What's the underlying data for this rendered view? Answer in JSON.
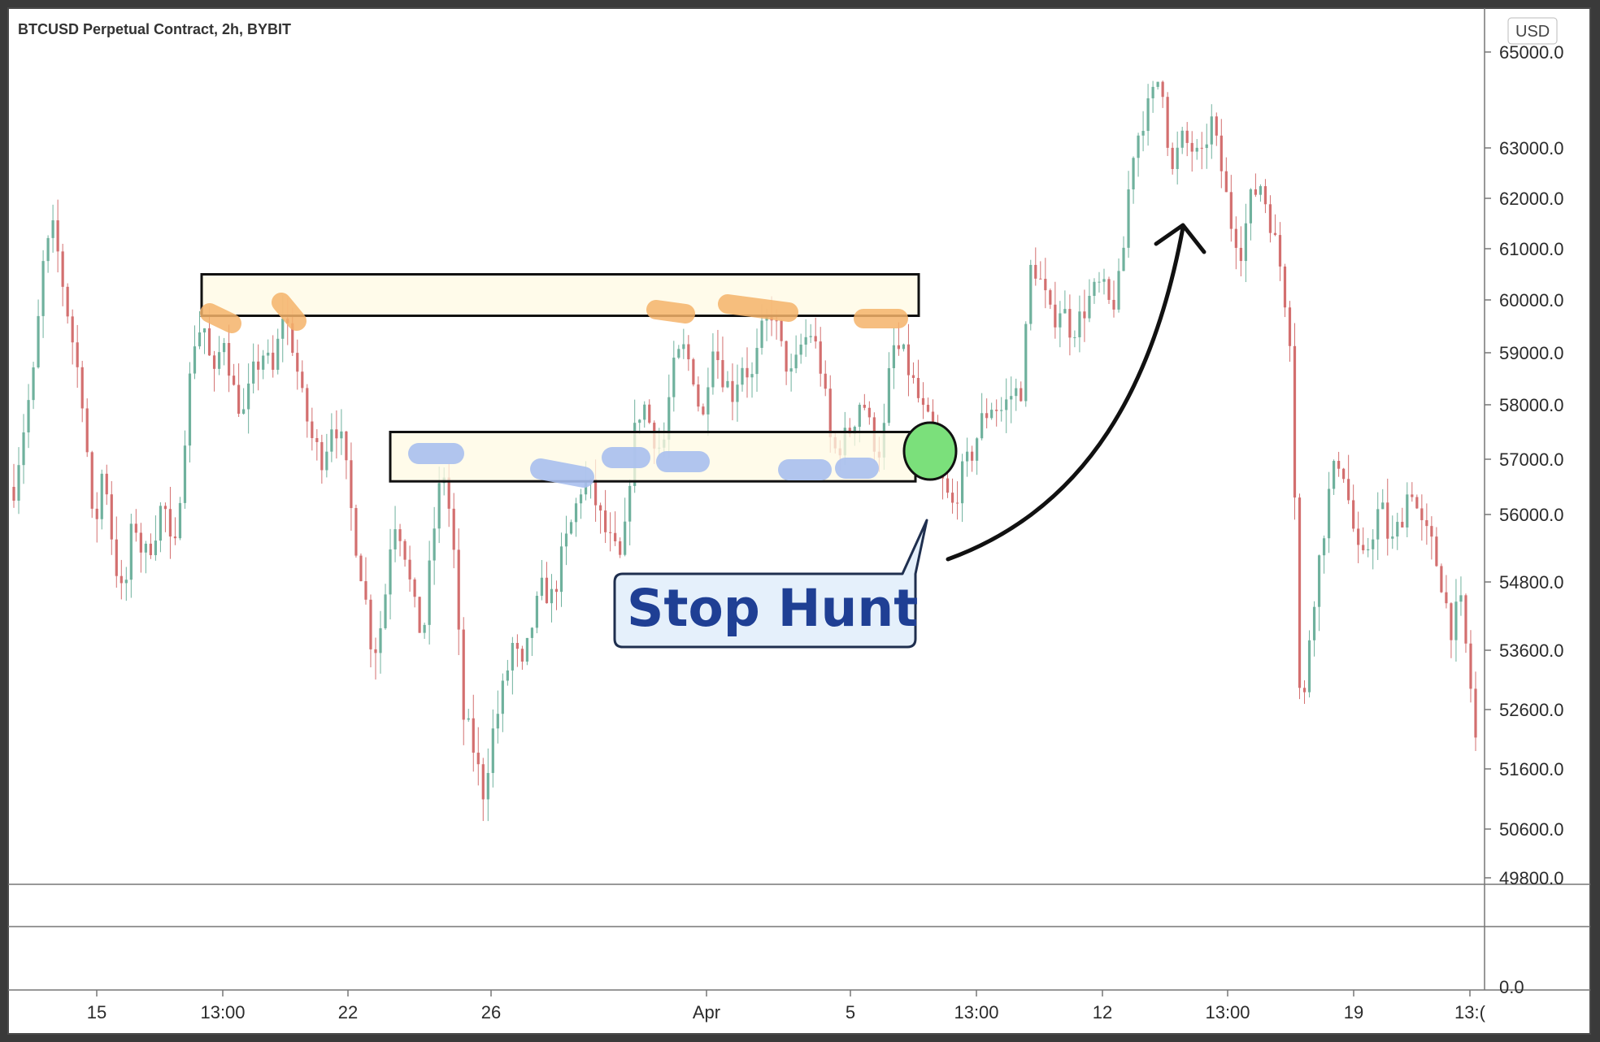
{
  "chart_data": {
    "type": "candlestick",
    "title": "BTCUSD Perpetual Contract, 2h, BYBIT",
    "currency": "USD",
    "price_scale": {
      "ticks": [
        "65000.0",
        "63000.0",
        "62000.0",
        "61000.0",
        "60000.0",
        "59000.0",
        "58000.0",
        "57000.0",
        "56000.0",
        "54800.0",
        "53600.0",
        "52600.0",
        "51600.0",
        "50600.0",
        "49800.0"
      ],
      "log_scale": true
    },
    "volume_pane_tick": "0.0",
    "x_ticks": [
      "15",
      "13:00",
      "22",
      "26",
      "Apr",
      "5",
      "13:00",
      "12",
      "13:00",
      "19",
      "13:("
    ],
    "price_path": [
      {
        "x": 0,
        "y": 56500
      },
      {
        "x": 2,
        "y": 57600
      },
      {
        "x": 4,
        "y": 58600
      },
      {
        "x": 6,
        "y": 60800
      },
      {
        "x": 8,
        "y": 61400
      },
      {
        "x": 10,
        "y": 60200
      },
      {
        "x": 12,
        "y": 59100
      },
      {
        "x": 14,
        "y": 58000
      },
      {
        "x": 16,
        "y": 55500
      },
      {
        "x": 18,
        "y": 57000
      },
      {
        "x": 20,
        "y": 55300
      },
      {
        "x": 22,
        "y": 54400
      },
      {
        "x": 24,
        "y": 56000
      },
      {
        "x": 26,
        "y": 55200
      },
      {
        "x": 28,
        "y": 55600
      },
      {
        "x": 30,
        "y": 56300
      },
      {
        "x": 32,
        "y": 55000
      },
      {
        "x": 34,
        "y": 57200
      },
      {
        "x": 36,
        "y": 59200
      },
      {
        "x": 38,
        "y": 59600
      },
      {
        "x": 40,
        "y": 58400
      },
      {
        "x": 42,
        "y": 59400
      },
      {
        "x": 44,
        "y": 58300
      },
      {
        "x": 46,
        "y": 57800
      },
      {
        "x": 48,
        "y": 58600
      },
      {
        "x": 50,
        "y": 59000
      },
      {
        "x": 52,
        "y": 58600
      },
      {
        "x": 54,
        "y": 59800
      },
      {
        "x": 56,
        "y": 59100
      },
      {
        "x": 58,
        "y": 58000
      },
      {
        "x": 60,
        "y": 57300
      },
      {
        "x": 62,
        "y": 57000
      },
      {
        "x": 64,
        "y": 57800
      },
      {
        "x": 66,
        "y": 57200
      },
      {
        "x": 68,
        "y": 55800
      },
      {
        "x": 70,
        "y": 54800
      },
      {
        "x": 72,
        "y": 53500
      },
      {
        "x": 74,
        "y": 54200
      },
      {
        "x": 76,
        "y": 56000
      },
      {
        "x": 78,
        "y": 55600
      },
      {
        "x": 80,
        "y": 54400
      },
      {
        "x": 82,
        "y": 53800
      },
      {
        "x": 84,
        "y": 55600
      },
      {
        "x": 86,
        "y": 56900
      },
      {
        "x": 88,
        "y": 55600
      },
      {
        "x": 90,
        "y": 52500
      },
      {
        "x": 92,
        "y": 52000
      },
      {
        "x": 94,
        "y": 51200
      },
      {
        "x": 96,
        "y": 52200
      },
      {
        "x": 98,
        "y": 52900
      },
      {
        "x": 100,
        "y": 53700
      },
      {
        "x": 102,
        "y": 53200
      },
      {
        "x": 104,
        "y": 54100
      },
      {
        "x": 106,
        "y": 54700
      },
      {
        "x": 108,
        "y": 54500
      },
      {
        "x": 110,
        "y": 55300
      },
      {
        "x": 112,
        "y": 55900
      },
      {
        "x": 114,
        "y": 56600
      },
      {
        "x": 116,
        "y": 56400
      },
      {
        "x": 118,
        "y": 55800
      },
      {
        "x": 120,
        "y": 55400
      },
      {
        "x": 122,
        "y": 55100
      },
      {
        "x": 124,
        "y": 57300
      },
      {
        "x": 126,
        "y": 58100
      },
      {
        "x": 128,
        "y": 57500
      },
      {
        "x": 130,
        "y": 57100
      },
      {
        "x": 132,
        "y": 58600
      },
      {
        "x": 134,
        "y": 59100
      },
      {
        "x": 136,
        "y": 58700
      },
      {
        "x": 138,
        "y": 57600
      },
      {
        "x": 140,
        "y": 59300
      },
      {
        "x": 142,
        "y": 58600
      },
      {
        "x": 144,
        "y": 58200
      },
      {
        "x": 146,
        "y": 58800
      },
      {
        "x": 148,
        "y": 58500
      },
      {
        "x": 150,
        "y": 59400
      },
      {
        "x": 152,
        "y": 59800
      },
      {
        "x": 154,
        "y": 59000
      },
      {
        "x": 156,
        "y": 58500
      },
      {
        "x": 158,
        "y": 59200
      },
      {
        "x": 160,
        "y": 59400
      },
      {
        "x": 162,
        "y": 58600
      },
      {
        "x": 164,
        "y": 57100
      },
      {
        "x": 166,
        "y": 57300
      },
      {
        "x": 168,
        "y": 57600
      },
      {
        "x": 170,
        "y": 58200
      },
      {
        "x": 172,
        "y": 57400
      },
      {
        "x": 174,
        "y": 57100
      },
      {
        "x": 176,
        "y": 59100
      },
      {
        "x": 178,
        "y": 59000
      },
      {
        "x": 180,
        "y": 58500
      },
      {
        "x": 182,
        "y": 57900
      },
      {
        "x": 184,
        "y": 57500
      },
      {
        "x": 186,
        "y": 56600
      },
      {
        "x": 188,
        "y": 56100
      },
      {
        "x": 190,
        "y": 56700
      },
      {
        "x": 192,
        "y": 57100
      },
      {
        "x": 194,
        "y": 57700
      },
      {
        "x": 196,
        "y": 58000
      },
      {
        "x": 198,
        "y": 57900
      },
      {
        "x": 200,
        "y": 58200
      },
      {
        "x": 202,
        "y": 58300
      },
      {
        "x": 204,
        "y": 60800
      },
      {
        "x": 206,
        "y": 60300
      },
      {
        "x": 208,
        "y": 59600
      },
      {
        "x": 210,
        "y": 59900
      },
      {
        "x": 212,
        "y": 59400
      },
      {
        "x": 214,
        "y": 59700
      },
      {
        "x": 216,
        "y": 60100
      },
      {
        "x": 218,
        "y": 60300
      },
      {
        "x": 220,
        "y": 59800
      },
      {
        "x": 222,
        "y": 60500
      },
      {
        "x": 224,
        "y": 62800
      },
      {
        "x": 226,
        "y": 63500
      },
      {
        "x": 228,
        "y": 64000
      },
      {
        "x": 230,
        "y": 64600
      },
      {
        "x": 232,
        "y": 62400
      },
      {
        "x": 234,
        "y": 63200
      },
      {
        "x": 236,
        "y": 63000
      },
      {
        "x": 238,
        "y": 62700
      },
      {
        "x": 240,
        "y": 63600
      },
      {
        "x": 242,
        "y": 62600
      },
      {
        "x": 244,
        "y": 61500
      },
      {
        "x": 246,
        "y": 61000
      },
      {
        "x": 248,
        "y": 62000
      },
      {
        "x": 250,
        "y": 62300
      },
      {
        "x": 252,
        "y": 61500
      },
      {
        "x": 254,
        "y": 60600
      },
      {
        "x": 256,
        "y": 59200
      },
      {
        "x": 258,
        "y": 52000
      },
      {
        "x": 260,
        "y": 54200
      },
      {
        "x": 262,
        "y": 55400
      },
      {
        "x": 264,
        "y": 56600
      },
      {
        "x": 266,
        "y": 57100
      },
      {
        "x": 268,
        "y": 56000
      },
      {
        "x": 270,
        "y": 55000
      },
      {
        "x": 272,
        "y": 55600
      },
      {
        "x": 274,
        "y": 56200
      },
      {
        "x": 276,
        "y": 55400
      },
      {
        "x": 278,
        "y": 55900
      },
      {
        "x": 280,
        "y": 56600
      },
      {
        "x": 282,
        "y": 55800
      },
      {
        "x": 284,
        "y": 55500
      },
      {
        "x": 286,
        "y": 54900
      },
      {
        "x": 288,
        "y": 54000
      },
      {
        "x": 290,
        "y": 54400
      },
      {
        "x": 292,
        "y": 53000
      },
      {
        "x": 294,
        "y": 51200
      }
    ],
    "annotations": {
      "resistance_zone": {
        "low": 59700,
        "high": 60500
      },
      "support_zone": {
        "low": 56600,
        "high": 57500
      },
      "callout_text": "Stop Hunt"
    },
    "grid": false,
    "legend": "none"
  },
  "colors": {
    "frame": "#3a3a3a",
    "chart_bg": "#ffffff",
    "zone_fill": "#fff9e3",
    "zone_border": "#111111",
    "resistance_marker": "#f4b36a",
    "support_marker": "#a8bfee",
    "stop_hunt_marker": "#7be07b",
    "callout_bg": "#e5f0fb",
    "callout_text": "#1f3f94",
    "bull_candle": "#6fb19d",
    "bear_candle": "#d36f6f"
  },
  "icons": {
    "arrow": "curved-up-arrow-icon"
  }
}
